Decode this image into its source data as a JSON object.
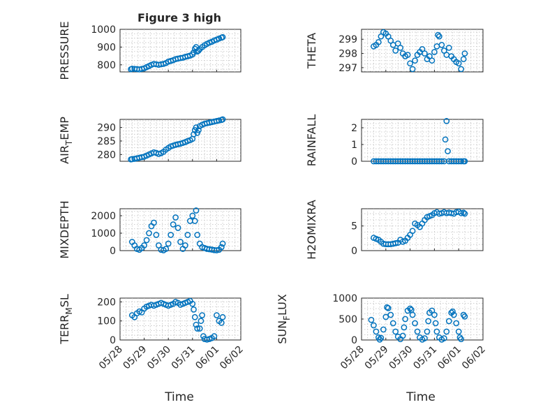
{
  "figure_title": "Figure 3 high",
  "chart_data": [
    {
      "type": "scatter",
      "ylabel": "PRESSURE",
      "ylim": [
        760,
        1000
      ],
      "yticks": [
        800,
        900,
        1000
      ],
      "xticks": [
        "05/28",
        "05/29",
        "05/30",
        "05/31",
        "06/01",
        "06/02"
      ],
      "xlim_days": [
        0,
        5
      ],
      "grid": true,
      "marker": "circle",
      "color": "#0072BD",
      "title": "Figure 3 high",
      "x_days": [
        0.45,
        0.5,
        0.6,
        0.7,
        0.8,
        0.9,
        1.0,
        1.1,
        1.2,
        1.3,
        1.4,
        1.5,
        1.6,
        1.7,
        1.8,
        1.9,
        2.0,
        2.1,
        2.2,
        2.3,
        2.4,
        2.5,
        2.6,
        2.7,
        2.8,
        2.9,
        3.0,
        3.05,
        3.1,
        3.15,
        3.2,
        3.25,
        3.3,
        3.4,
        3.5,
        3.6,
        3.7,
        3.8,
        3.9,
        4.0,
        4.1,
        4.2,
        4.25
      ],
      "y": [
        775,
        778,
        777,
        776,
        774,
        777,
        780,
        787,
        793,
        800,
        805,
        803,
        800,
        803,
        805,
        810,
        818,
        822,
        826,
        832,
        835,
        838,
        840,
        845,
        848,
        852,
        858,
        870,
        890,
        900,
        875,
        880,
        888,
        900,
        910,
        918,
        925,
        930,
        937,
        942,
        948,
        953,
        956
      ]
    },
    {
      "type": "scatter",
      "ylabel": "THETA",
      "ylim": [
        296.7,
        299.7
      ],
      "yticks": [
        297,
        298,
        299
      ],
      "xticks": [
        "05/28",
        "05/29",
        "05/30",
        "05/31",
        "06/01",
        "06/02"
      ],
      "xlim_days": [
        0,
        5
      ],
      "grid": true,
      "color": "#0072BD",
      "x_days": [
        0.5,
        0.6,
        0.7,
        0.8,
        0.9,
        1.0,
        1.1,
        1.2,
        1.3,
        1.4,
        1.5,
        1.6,
        1.7,
        1.8,
        1.9,
        2.0,
        2.1,
        2.2,
        2.3,
        2.4,
        2.5,
        2.6,
        2.7,
        2.8,
        2.9,
        3.0,
        3.1,
        3.15,
        3.2,
        3.3,
        3.4,
        3.5,
        3.6,
        3.7,
        3.8,
        3.9,
        4.0,
        4.1,
        4.2,
        4.25
      ],
      "y": [
        298.5,
        298.6,
        298.8,
        299.2,
        299.5,
        299.4,
        299.2,
        298.9,
        298.6,
        298.2,
        298.7,
        298.4,
        298.0,
        297.8,
        297.9,
        297.3,
        296.9,
        297.5,
        297.9,
        298.1,
        298.3,
        298.0,
        297.6,
        297.8,
        297.5,
        298.1,
        298.5,
        299.3,
        299.2,
        298.6,
        298.2,
        297.9,
        298.4,
        297.8,
        297.6,
        297.4,
        297.3,
        296.9,
        297.6,
        298.0
      ]
    },
    {
      "type": "scatter",
      "ylabel": "AIR_TEMP",
      "ylabel_main": "AIR",
      "ylabel_sub": "T",
      "ylabel_rest": "EMP",
      "ylim": [
        277.5,
        293
      ],
      "yticks": [
        280,
        285,
        290
      ],
      "xticks": [
        "05/28",
        "05/29",
        "05/30",
        "05/31",
        "06/01",
        "06/02"
      ],
      "xlim_days": [
        0,
        5
      ],
      "grid": true,
      "color": "#0072BD",
      "x_days": [
        0.45,
        0.5,
        0.6,
        0.7,
        0.8,
        0.9,
        1.0,
        1.1,
        1.2,
        1.3,
        1.4,
        1.5,
        1.6,
        1.7,
        1.8,
        1.9,
        2.0,
        2.1,
        2.2,
        2.3,
        2.4,
        2.5,
        2.6,
        2.7,
        2.8,
        2.9,
        3.0,
        3.05,
        3.1,
        3.15,
        3.2,
        3.25,
        3.3,
        3.4,
        3.5,
        3.6,
        3.7,
        3.8,
        3.9,
        4.0,
        4.1,
        4.2,
        4.25
      ],
      "y": [
        278.2,
        278.3,
        278.4,
        278.6,
        278.8,
        279.0,
        279.2,
        279.6,
        280.0,
        280.4,
        280.8,
        280.6,
        280.2,
        280.5,
        281.0,
        281.8,
        282.4,
        283.0,
        283.3,
        283.6,
        283.8,
        284.0,
        284.3,
        284.6,
        285.0,
        285.3,
        285.8,
        287.5,
        289.0,
        290.0,
        288.0,
        289.0,
        290.5,
        291.0,
        291.4,
        291.6,
        291.8,
        292.0,
        292.2,
        292.4,
        292.6,
        292.8,
        293.0
      ]
    },
    {
      "type": "scatter",
      "ylabel": "RAINFALL",
      "ylim": [
        0,
        2.5
      ],
      "yticks": [
        0,
        1,
        2
      ],
      "xticks": [
        "05/28",
        "05/29",
        "05/30",
        "05/31",
        "06/01",
        "06/02"
      ],
      "xlim_days": [
        0,
        5
      ],
      "grid": true,
      "color": "#0072BD",
      "x_days": [
        0.5,
        0.6,
        0.7,
        0.8,
        0.9,
        1.0,
        1.1,
        1.2,
        1.3,
        1.4,
        1.5,
        1.6,
        1.7,
        1.8,
        1.9,
        2.0,
        2.1,
        2.2,
        2.3,
        2.4,
        2.5,
        2.6,
        2.7,
        2.8,
        2.9,
        3.0,
        3.1,
        3.2,
        3.3,
        3.4,
        3.45,
        3.5,
        3.55,
        3.6,
        3.7,
        3.8,
        3.9,
        4.0,
        4.1,
        4.2,
        4.25
      ],
      "y": [
        0,
        0,
        0,
        0,
        0,
        0,
        0,
        0,
        0,
        0,
        0,
        0,
        0,
        0,
        0,
        0,
        0,
        0,
        0,
        0,
        0,
        0,
        0,
        0,
        0,
        0,
        0,
        0,
        0,
        0,
        1.3,
        2.4,
        0.6,
        0,
        0,
        0,
        0,
        0,
        0,
        0,
        0
      ]
    },
    {
      "type": "scatter",
      "ylabel": "MIXDEPTH",
      "ylim": [
        0,
        2400
      ],
      "yticks": [
        0,
        1000,
        2000
      ],
      "xticks": [
        "05/28",
        "05/29",
        "05/30",
        "05/31",
        "06/01",
        "06/02"
      ],
      "xlim_days": [
        0,
        5
      ],
      "grid": true,
      "color": "#0072BD",
      "x_days": [
        0.5,
        0.6,
        0.7,
        0.8,
        0.9,
        1.0,
        1.1,
        1.2,
        1.3,
        1.4,
        1.5,
        1.6,
        1.7,
        1.8,
        1.9,
        2.0,
        2.1,
        2.2,
        2.3,
        2.4,
        2.5,
        2.6,
        2.7,
        2.8,
        2.9,
        3.0,
        3.1,
        3.15,
        3.2,
        3.3,
        3.4,
        3.5,
        3.6,
        3.7,
        3.8,
        3.9,
        4.0,
        4.1,
        4.2,
        4.25
      ],
      "y": [
        500,
        300,
        100,
        50,
        150,
        300,
        600,
        1000,
        1400,
        1600,
        900,
        300,
        50,
        20,
        100,
        400,
        900,
        1500,
        1900,
        1300,
        500,
        100,
        300,
        900,
        1700,
        2000,
        1700,
        2300,
        900,
        400,
        200,
        150,
        100,
        80,
        60,
        30,
        20,
        50,
        200,
        400
      ]
    },
    {
      "type": "scatter",
      "ylabel": "H2OMIXRA",
      "ylim": [
        0,
        8.5
      ],
      "yticks": [
        0,
        5
      ],
      "xticks": [
        "05/28",
        "05/29",
        "05/30",
        "05/31",
        "06/01",
        "06/02"
      ],
      "xlim_days": [
        0,
        5
      ],
      "grid": true,
      "color": "#0072BD",
      "x_days": [
        0.5,
        0.6,
        0.7,
        0.8,
        0.9,
        1.0,
        1.1,
        1.2,
        1.3,
        1.4,
        1.5,
        1.6,
        1.7,
        1.8,
        1.9,
        2.0,
        2.1,
        2.2,
        2.3,
        2.4,
        2.5,
        2.6,
        2.7,
        2.8,
        2.9,
        3.0,
        3.1,
        3.2,
        3.3,
        3.4,
        3.5,
        3.6,
        3.7,
        3.8,
        3.9,
        4.0,
        4.1,
        4.2,
        4.25
      ],
      "y": [
        2.6,
        2.4,
        2.2,
        1.8,
        1.4,
        1.3,
        1.3,
        1.3,
        1.4,
        1.5,
        1.6,
        2.2,
        1.8,
        2.0,
        2.6,
        3.2,
        4.0,
        5.5,
        5.2,
        4.8,
        5.5,
        6.2,
        6.8,
        7.0,
        7.2,
        7.6,
        7.8,
        7.5,
        7.6,
        7.8,
        7.6,
        7.7,
        7.6,
        7.5,
        7.8,
        7.9,
        7.6,
        7.7,
        7.5
      ]
    },
    {
      "type": "scatter",
      "ylabel": "TERR_MSL",
      "ylabel_main": "TERR",
      "ylabel_sub": "M",
      "ylabel_rest": "SL",
      "ylim": [
        0,
        220
      ],
      "yticks": [
        0,
        100,
        200
      ],
      "xticks": [
        "05/28",
        "05/29",
        "05/30",
        "05/31",
        "06/01",
        "06/02"
      ],
      "xlim_days": [
        0,
        5
      ],
      "grid": true,
      "color": "#0072BD",
      "x_days": [
        0.5,
        0.6,
        0.7,
        0.8,
        0.9,
        1.0,
        1.1,
        1.2,
        1.3,
        1.4,
        1.5,
        1.6,
        1.7,
        1.8,
        1.9,
        2.0,
        2.1,
        2.2,
        2.3,
        2.4,
        2.5,
        2.6,
        2.7,
        2.8,
        2.9,
        3.0,
        3.05,
        3.1,
        3.15,
        3.2,
        3.3,
        3.35,
        3.4,
        3.45,
        3.5,
        3.6,
        3.7,
        3.8,
        3.9,
        4.0,
        4.1,
        4.2,
        4.25
      ],
      "y": [
        130,
        120,
        140,
        150,
        145,
        165,
        175,
        180,
        185,
        180,
        185,
        190,
        195,
        190,
        185,
        180,
        185,
        190,
        200,
        195,
        185,
        190,
        195,
        200,
        205,
        190,
        160,
        120,
        80,
        60,
        60,
        100,
        130,
        20,
        5,
        2,
        5,
        10,
        20,
        130,
        100,
        90,
        120
      ]
    },
    {
      "type": "scatter",
      "ylabel": "SUN_FLUX",
      "ylabel_main": "SUN",
      "ylabel_sub": "F",
      "ylabel_rest": "LUX",
      "ylim": [
        0,
        1000
      ],
      "yticks": [
        0,
        500,
        1000
      ],
      "xticks": [
        "05/28",
        "05/29",
        "05/30",
        "05/31",
        "06/01",
        "06/02"
      ],
      "xlim_days": [
        0,
        5
      ],
      "grid": true,
      "color": "#0072BD",
      "x_days": [
        0.4,
        0.5,
        0.6,
        0.7,
        0.75,
        0.8,
        0.9,
        1.0,
        1.05,
        1.1,
        1.2,
        1.3,
        1.4,
        1.5,
        1.6,
        1.7,
        1.75,
        1.8,
        1.9,
        2.0,
        2.05,
        2.1,
        2.2,
        2.3,
        2.4,
        2.5,
        2.6,
        2.7,
        2.75,
        2.8,
        2.9,
        3.0,
        3.05,
        3.1,
        3.2,
        3.3,
        3.4,
        3.5,
        3.6,
        3.7,
        3.75,
        3.8,
        3.9,
        4.0,
        4.05,
        4.1,
        4.2,
        4.25
      ],
      "y": [
        480,
        350,
        200,
        60,
        10,
        50,
        250,
        550,
        780,
        760,
        600,
        400,
        200,
        80,
        20,
        100,
        300,
        500,
        700,
        750,
        720,
        600,
        400,
        200,
        60,
        10,
        40,
        200,
        450,
        650,
        700,
        600,
        400,
        200,
        60,
        10,
        40,
        200,
        450,
        650,
        680,
        600,
        400,
        200,
        60,
        20,
        600,
        560
      ]
    }
  ],
  "xlabel": "Time"
}
